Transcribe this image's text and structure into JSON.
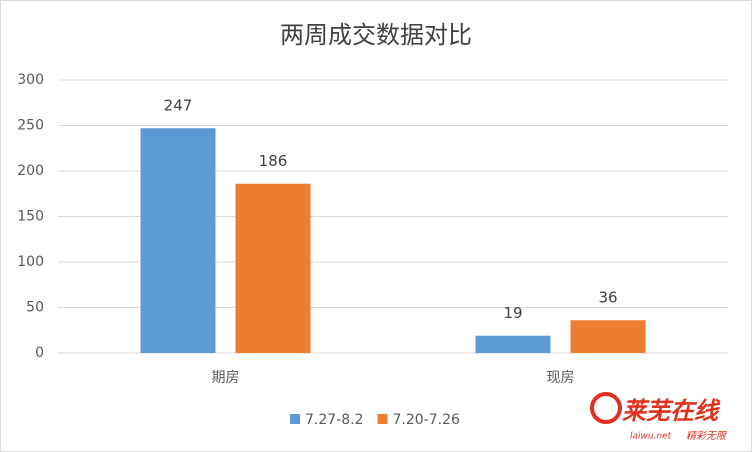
{
  "chart_data": {
    "type": "bar",
    "title": "两周成交数据对比",
    "categories": [
      "期房",
      "现房"
    ],
    "series": [
      {
        "name": "7.27-8.2",
        "color": "#5b9bd5",
        "values": [
          247,
          19
        ]
      },
      {
        "name": "7.20-7.26",
        "color": "#ed7d31",
        "values": [
          186,
          36
        ]
      }
    ],
    "ylim": [
      0,
      300
    ],
    "yticks": [
      0,
      50,
      100,
      150,
      200,
      250,
      300
    ],
    "grid": true,
    "legend": "bottom"
  },
  "watermark": {
    "brand": "莱芜在线",
    "url": "laiwu.net",
    "slogan": "精彩无限"
  }
}
